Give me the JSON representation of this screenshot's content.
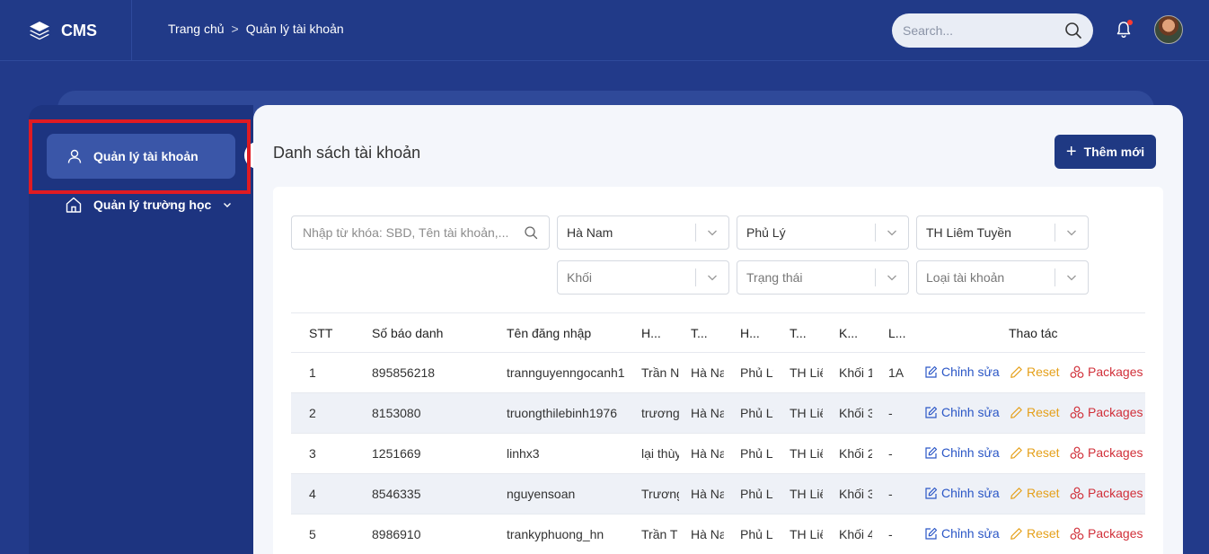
{
  "app": {
    "name": "CMS"
  },
  "breadcrumb": {
    "home": "Trang chủ",
    "separator": ">",
    "current": "Quản lý tài khoản"
  },
  "search": {
    "placeholder": "Search..."
  },
  "sidebar": {
    "items": [
      {
        "label": "Quản lý tài khoản",
        "icon": "user-icon",
        "active": true
      },
      {
        "label": "Quản lý trường học",
        "icon": "home-icon",
        "active": false
      }
    ]
  },
  "main": {
    "title": "Danh sách tài khoản",
    "add_label": "Thêm mới"
  },
  "filters": {
    "keyword_placeholder": "Nhập từ khóa: SBD, Tên tài khoản,...",
    "province": "Hà Nam",
    "district": "Phủ Lý",
    "school": "TH Liêm Tuyền",
    "grade_placeholder": "Khối",
    "status_placeholder": "Trạng thái",
    "account_type_placeholder": "Loại tài khoản"
  },
  "table": {
    "headers": [
      "STT",
      "Số báo danh",
      "Tên đăng nhập",
      "H...",
      "T...",
      "H...",
      "T...",
      "K...",
      "L...",
      "Thao tác"
    ],
    "actions": {
      "edit": "Chỉnh sửa",
      "reset": "Reset",
      "packages": "Packages"
    },
    "rows": [
      [
        "1",
        "895856218",
        "trannguyenngocanh1",
        "Trần Nguyễn",
        "Hà Nam",
        "Phủ Lý",
        "TH Liêm Tuyền",
        "Khối 1",
        "1A"
      ],
      [
        "2",
        "8153080",
        "truongthilebinh1976",
        "trương thị",
        "Hà Nam",
        "Phủ Lý",
        "TH Liêm Tuyền",
        "Khối 3",
        "-"
      ],
      [
        "3",
        "1251669",
        "linhx3",
        "lại thùy",
        "Hà Nam",
        "Phủ Lý",
        "TH Liêm Tuyền",
        "Khối 2",
        "-"
      ],
      [
        "4",
        "8546335",
        "nguyensoan",
        "Trương",
        "Hà Nam",
        "Phủ Lý",
        "TH Liêm Tuyền",
        "Khối 3",
        "-"
      ],
      [
        "5",
        "8986910",
        "trankyphuong_hn",
        "Trần T",
        "Hà Nam",
        "Phủ Lý",
        "TH Liêm Tuyền",
        "Khối 4",
        "-"
      ]
    ]
  },
  "colors": {
    "header_bg": "#213a88",
    "primary_button": "#1f3983",
    "edit": "#2a56c6",
    "reset": "#e5a01a",
    "packages": "#d1303a",
    "highlight_box": "#e01b22"
  }
}
